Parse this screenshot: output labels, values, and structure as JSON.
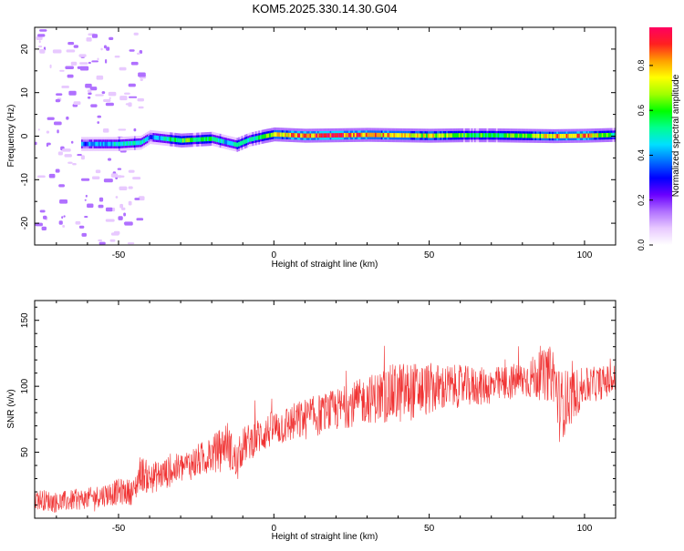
{
  "figure_title": "KOM5.2025.330.14.30.G04",
  "colors": {
    "snr_line": "#f03232",
    "frame": "#000000",
    "colormap": [
      "#ffffff",
      "#e8c9ff",
      "#b070ff",
      "#6a00ff",
      "#0000ff",
      "#0070ff",
      "#00e0ff",
      "#00ff90",
      "#00ff00",
      "#a0ff00",
      "#ffff00",
      "#ffa000",
      "#ff2020",
      "#ff0060"
    ]
  },
  "chart_data": [
    {
      "type": "heatmap",
      "title": "KOM5.2025.330.14.30.G04",
      "xlabel": "Height of straight line (km)",
      "ylabel": "Frequency (Hz)",
      "xlim": [
        -77,
        110
      ],
      "ylim": [
        -25,
        25
      ],
      "x_ticks": [
        -50,
        0,
        50,
        100
      ],
      "y_ticks": [
        -20,
        -10,
        0,
        10,
        20
      ],
      "grid": false,
      "colorbar": {
        "label": "Normalized spectral amplitude",
        "range": [
          0.0,
          0.97
        ],
        "ticks": [
          0.0,
          0.2,
          0.4,
          0.6,
          0.8
        ]
      },
      "ridge": {
        "description_points_x": [
          -60,
          -50,
          -43,
          -40,
          -30,
          -20,
          -15,
          -12,
          -8,
          -3,
          0,
          10,
          20,
          30,
          40,
          50,
          60,
          70,
          80,
          90,
          100,
          110
        ],
        "frequency_hz": [
          -1.8,
          -1.8,
          -1.5,
          -0.2,
          -1.0,
          -0.6,
          -1.5,
          -2.0,
          -0.8,
          0.0,
          0.4,
          0.1,
          0.2,
          0.3,
          0.2,
          0.1,
          0.2,
          0.2,
          0.1,
          0.0,
          0.1,
          0.3
        ],
        "amplitude": [
          0.35,
          0.45,
          0.5,
          0.3,
          0.6,
          0.55,
          0.4,
          0.45,
          0.5,
          0.55,
          0.7,
          0.85,
          0.9,
          0.8,
          0.75,
          0.7,
          0.6,
          0.55,
          0.6,
          0.75,
          0.8,
          0.5
        ]
      },
      "noise_region_x": [
        -77,
        -43
      ]
    },
    {
      "type": "line",
      "xlabel": "Height of straight line (km)",
      "ylabel": "SNR (v/v)",
      "xlim": [
        -77,
        110
      ],
      "ylim": [
        0,
        165
      ],
      "x_ticks": [
        -50,
        0,
        50,
        100
      ],
      "y_ticks": [
        50,
        100,
        150
      ],
      "grid": false,
      "series": [
        {
          "x": [
            -77,
            -70,
            -60,
            -50,
            -45,
            -43,
            -40,
            -30,
            -20,
            -15,
            -12,
            -10,
            -5,
            0,
            10,
            20,
            30,
            40,
            50,
            60,
            70,
            80,
            90,
            92,
            100,
            110
          ],
          "values": [
            15,
            12,
            15,
            20,
            20,
            35,
            30,
            38,
            48,
            58,
            40,
            55,
            62,
            68,
            75,
            82,
            90,
            95,
            98,
            100,
            100,
            105,
            110,
            85,
            100,
            105
          ],
          "spread": [
            8,
            8,
            8,
            10,
            10,
            14,
            12,
            12,
            14,
            16,
            16,
            14,
            14,
            14,
            16,
            16,
            18,
            24,
            20,
            16,
            14,
            14,
            22,
            28,
            14,
            12
          ]
        }
      ]
    }
  ]
}
